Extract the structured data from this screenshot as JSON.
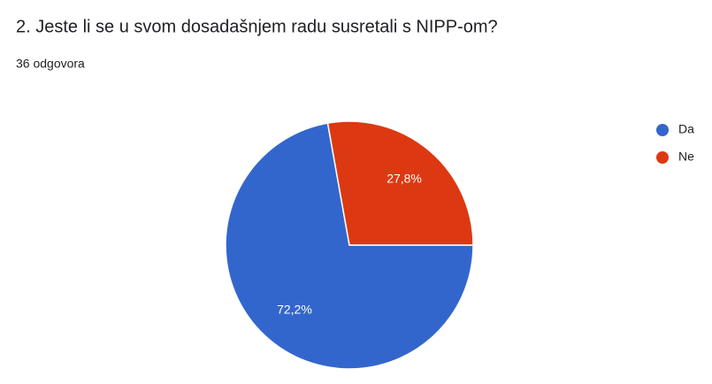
{
  "chart_data": {
    "type": "pie",
    "title": "2. Jeste li se u svom dosadašnjem radu susretali s NIPP-om?",
    "subtitle": "36 odgovora",
    "categories": [
      "Da",
      "Ne"
    ],
    "values": [
      72.2,
      27.8
    ],
    "value_labels": [
      "72,2%",
      "27,8%"
    ],
    "colors": [
      "#3366cc",
      "#dc3912"
    ],
    "legend": "right"
  }
}
